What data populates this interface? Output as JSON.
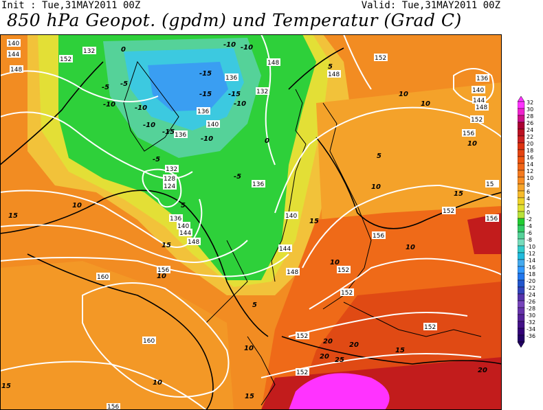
{
  "header": {
    "init_label": "Init : Tue,31MAY2011 00Z",
    "valid_label": "Valid: Tue,31MAY2011 00Z",
    "title": "850 hPa Geopot. (gpdm) und Temperatur (Grad C)"
  },
  "map": {
    "geopotential_labels": [
      "140",
      "144",
      "148",
      "152",
      "132",
      "136",
      "140",
      "136",
      "132",
      "128",
      "124",
      "136",
      "140",
      "144",
      "148",
      "156",
      "160",
      "160",
      "156",
      "152",
      "148",
      "152",
      "152",
      "152",
      "156",
      "152",
      "144",
      "140",
      "136",
      "144",
      "148",
      "152",
      "156",
      "15",
      "152",
      "148",
      "148",
      "136",
      "140",
      "132",
      "136",
      "152",
      "156"
    ],
    "temperature_labels": [
      "-10",
      "-10",
      "-5",
      "-5",
      "-15",
      "-15",
      "-10",
      "-10",
      "-10",
      "-15",
      "-15",
      "-5",
      "-5",
      "-10",
      "-10",
      "0",
      "0",
      "5",
      "5",
      "10",
      "10",
      "15",
      "15",
      "10",
      "10",
      "10",
      "15",
      "20",
      "20",
      "25",
      "20",
      "15",
      "10",
      "10",
      "5",
      "5",
      "15",
      "10",
      "10",
      "15",
      "20",
      "15",
      "10"
    ]
  },
  "legend": {
    "values": [
      "32",
      "30",
      "28",
      "26",
      "24",
      "22",
      "20",
      "18",
      "16",
      "14",
      "12",
      "10",
      "8",
      "6",
      "4",
      "2",
      "0",
      "-2",
      "-4",
      "-6",
      "-8",
      "-10",
      "-12",
      "-14",
      "-16",
      "-18",
      "-20",
      "-22",
      "-24",
      "-26",
      "-28",
      "-30",
      "-32",
      "-34",
      "-36"
    ],
    "colors": [
      "#ff33ff",
      "#ee22cc",
      "#cc1188",
      "#aa0033",
      "#bb1122",
      "#cc2222",
      "#dd3311",
      "#e44411",
      "#ee5511",
      "#f06618",
      "#f47a1e",
      "#f88c22",
      "#f7a52a",
      "#f6bb2c",
      "#eed32a",
      "#e0e033",
      "#b9e23a",
      "#22cc33",
      "#33cc66",
      "#55d299",
      "#77dbbb",
      "#33cccc",
      "#22bbdd",
      "#44aaee",
      "#3399ff",
      "#2277ee",
      "#2255cc",
      "#3344bb",
      "#5533aa",
      "#7744bb",
      "#6633aa",
      "#552299",
      "#441188",
      "#330077",
      "#220066"
    ],
    "top_arrow_color": "#ff33ff",
    "bottom_arrow_color": "#220066"
  },
  "colors": {
    "ocean_warm": "#f28c22",
    "land_warm": "#f4a22a",
    "cold_green": "#2ed03a",
    "cold_cyan": "#3cc9e0",
    "cold_blue": "#3a9ef2",
    "hot_red": "#c21c1c",
    "hot_magenta": "#ff33ff",
    "contour_white": "#ffffff",
    "isotherm_black": "#000000"
  }
}
